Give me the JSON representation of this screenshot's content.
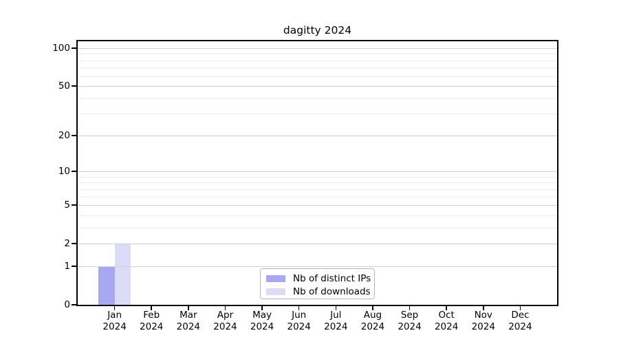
{
  "title": "dagitty 2024",
  "colors": {
    "background": "#ffffff",
    "axis": "#000000",
    "grid_major": "#d0d0d0",
    "grid_minor": "#ececec",
    "legend_border": "#b3b3b3",
    "bar_distinct_ips": "#a8a8f2",
    "bar_downloads": "#dcdcf9"
  },
  "chart_data": {
    "type": "bar",
    "title": "dagitty 2024",
    "grid": "horizontal",
    "legend_position": "bottom-center",
    "categories": [
      {
        "month": "Jan",
        "year": "2024"
      },
      {
        "month": "Feb",
        "year": "2024"
      },
      {
        "month": "Mar",
        "year": "2024"
      },
      {
        "month": "Apr",
        "year": "2024"
      },
      {
        "month": "May",
        "year": "2024"
      },
      {
        "month": "Jun",
        "year": "2024"
      },
      {
        "month": "Jul",
        "year": "2024"
      },
      {
        "month": "Aug",
        "year": "2024"
      },
      {
        "month": "Sep",
        "year": "2024"
      },
      {
        "month": "Oct",
        "year": "2024"
      },
      {
        "month": "Nov",
        "year": "2024"
      },
      {
        "month": "Dec",
        "year": "2024"
      }
    ],
    "series": [
      {
        "name": "Nb of distinct IPs",
        "color": "#a8a8f2",
        "values": [
          1,
          0,
          0,
          0,
          0,
          0,
          0,
          0,
          0,
          0,
          0,
          0
        ]
      },
      {
        "name": "Nb of downloads",
        "color": "#dcdcf9",
        "values": [
          2,
          0,
          0,
          0,
          0,
          0,
          0,
          0,
          0,
          0,
          0,
          0
        ]
      }
    ],
    "y_axis": {
      "scale": "log1p",
      "tick_values": [
        100,
        50,
        20,
        10,
        5,
        2,
        1,
        0
      ],
      "minor_gridline_values": [
        3,
        4,
        6,
        7,
        8,
        9,
        30,
        40,
        60,
        70,
        80,
        90
      ],
      "max": 113.3
    }
  }
}
